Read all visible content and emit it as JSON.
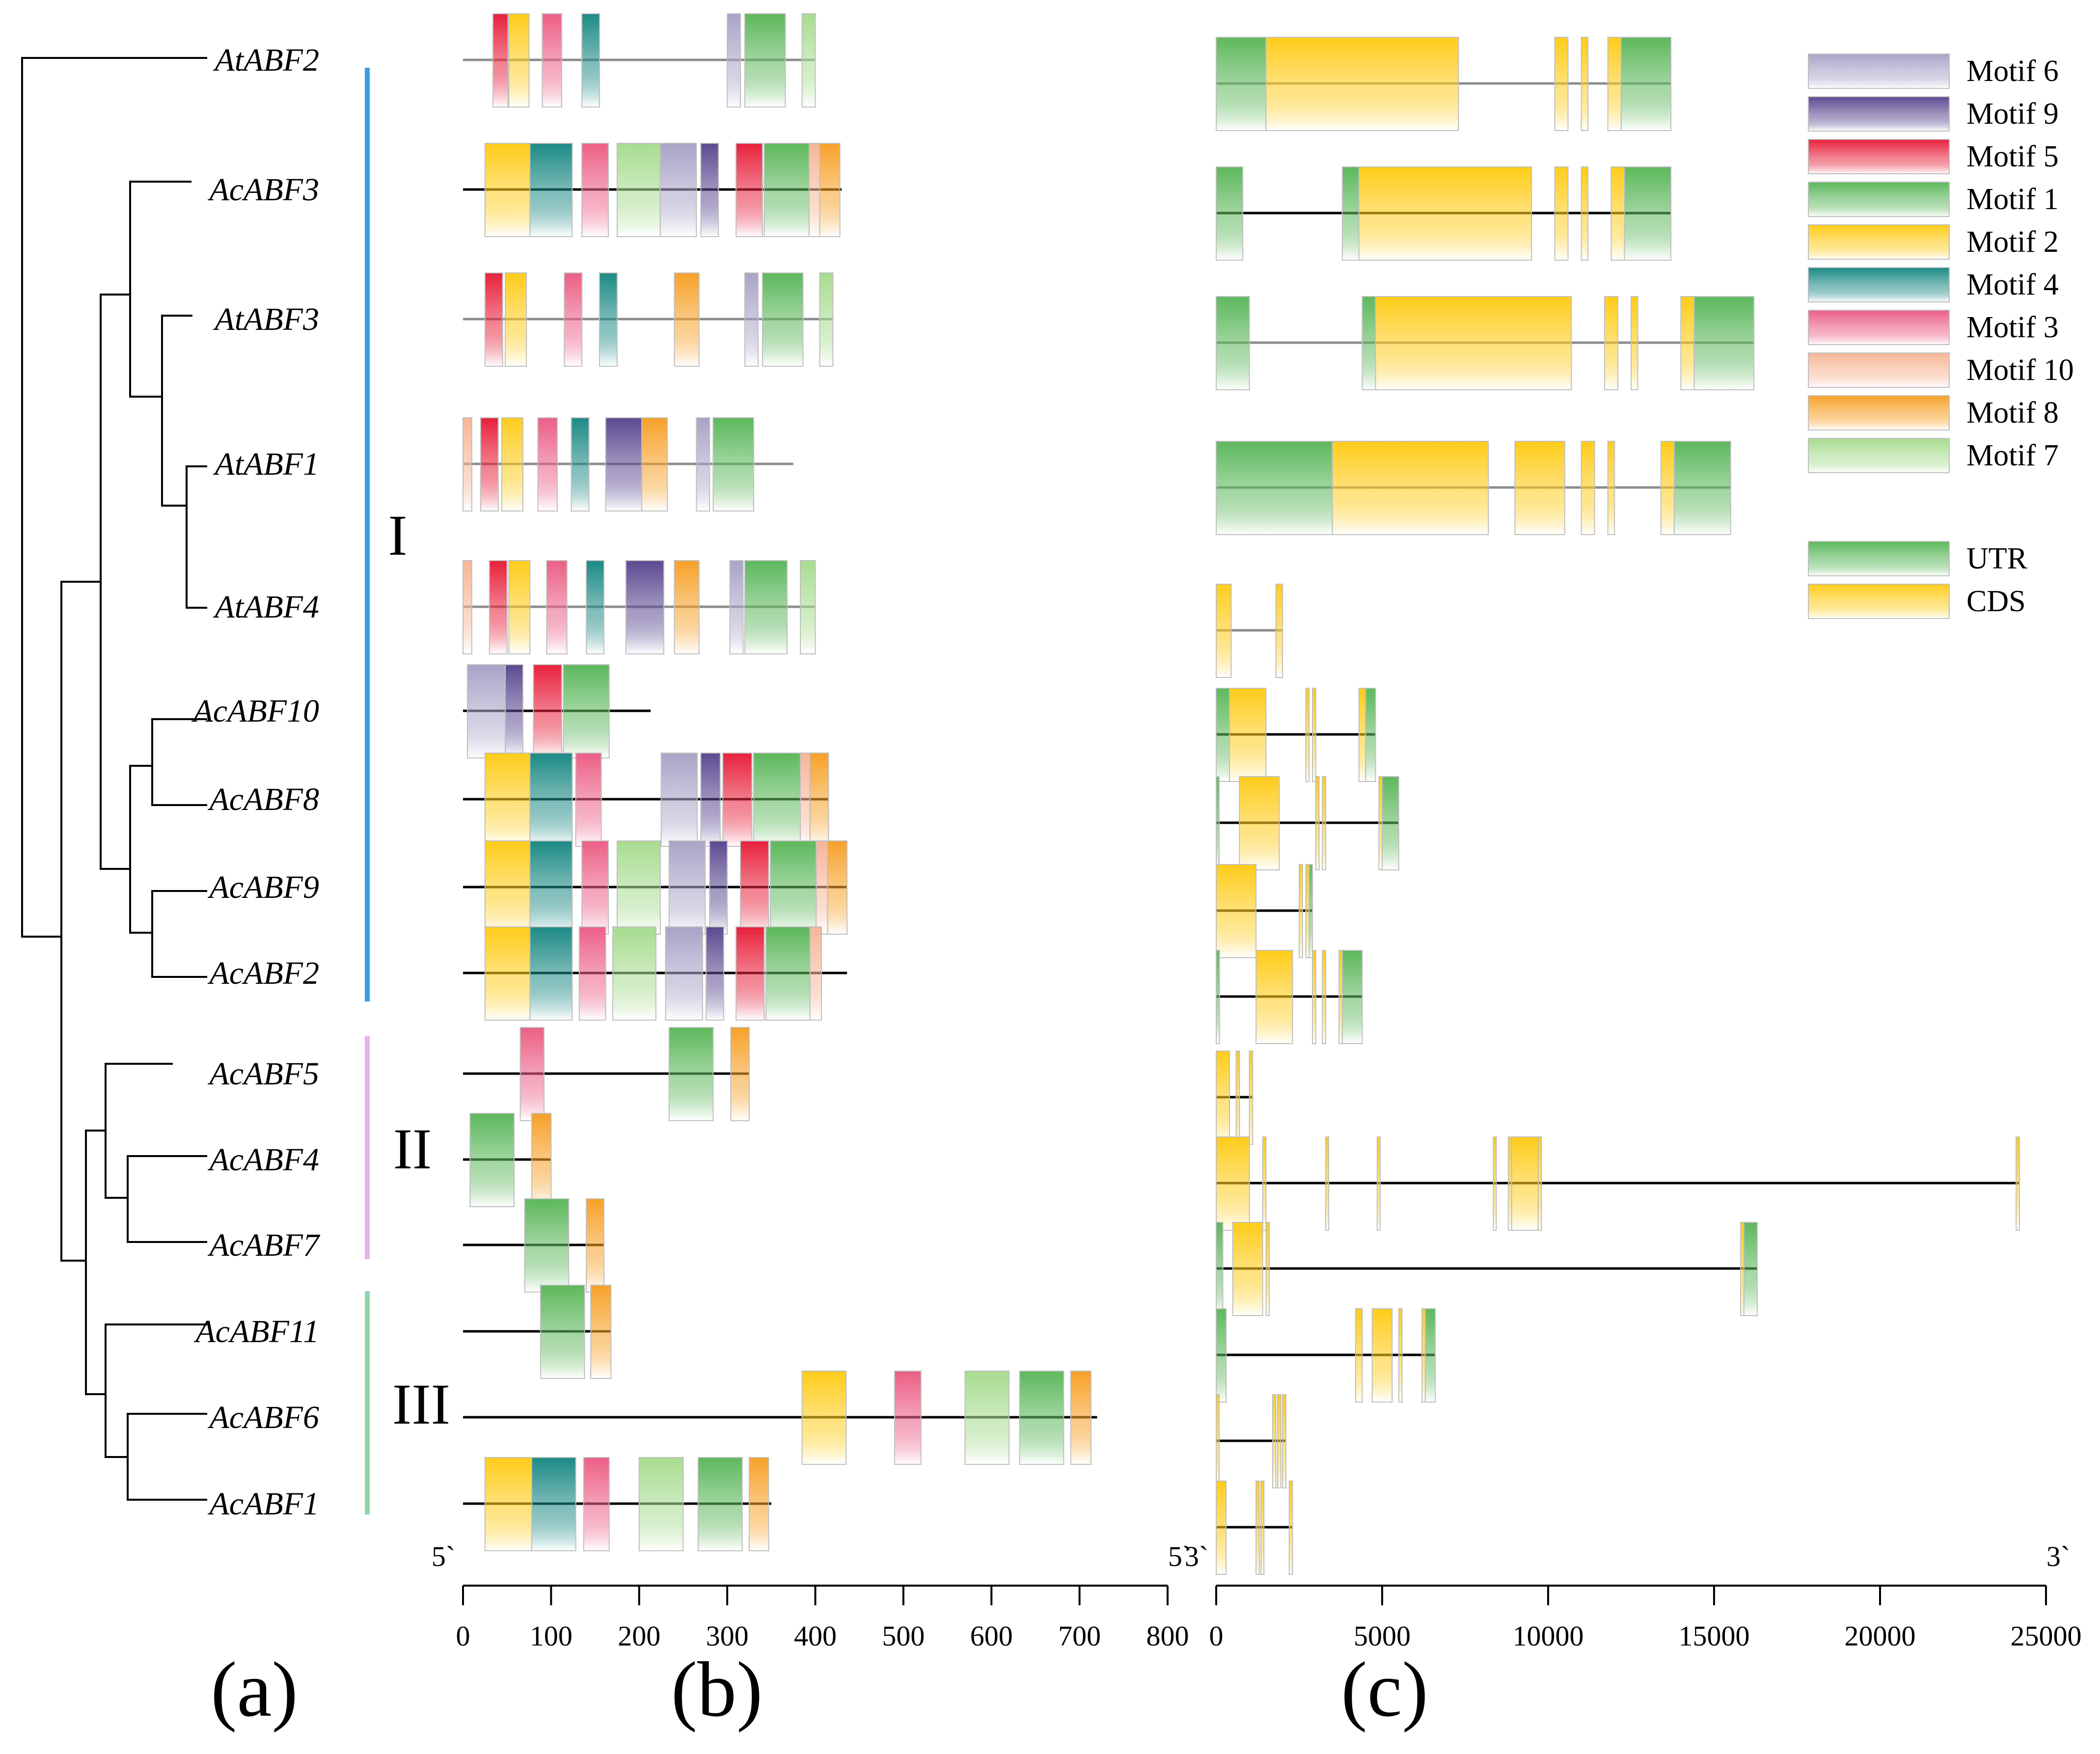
{
  "panel_labels": [
    "(a)",
    "(b)",
    "(c)"
  ],
  "groups": [
    "I",
    "II",
    "III"
  ],
  "group_colors": {
    "I": "#3a9ce6",
    "II": "#e7b3ec",
    "III": "#8fd6ac"
  },
  "genes": [
    "AtABF2",
    "AcABF3",
    "AtABF3",
    "AtABF1",
    "AtABF4",
    "AcABF10",
    "AcABF8",
    "AcABF9",
    "AcABF2",
    "AcABF5",
    "AcABF4",
    "AcABF7",
    "AcABF11",
    "AcABF6",
    "AcABF1"
  ],
  "motif_legend": [
    {
      "label": "Motif 6",
      "color": "#a9a3c7"
    },
    {
      "label": "Motif 9",
      "color": "#5c4a91"
    },
    {
      "label": "Motif 5",
      "color": "#e8213c"
    },
    {
      "label": "Motif 1",
      "color": "#5db85c"
    },
    {
      "label": "Motif 2",
      "color": "#ffcc1a"
    },
    {
      "label": "Motif 4",
      "color": "#1c8a85"
    },
    {
      "label": "Motif 3",
      "color": "#ec5f86"
    },
    {
      "label": "Motif 10",
      "color": "#f6b697"
    },
    {
      "label": "Motif 8",
      "color": "#f7a128"
    },
    {
      "label": "Motif 7",
      "color": "#a7dc8f"
    }
  ],
  "structure_legend": [
    {
      "label": "UTR",
      "color": "#5db85c"
    },
    {
      "label": "CDS",
      "color": "#ffcc1a"
    }
  ],
  "motif_axis": {
    "end_label_left": "5`",
    "end_label_right": "5`",
    "ticks": [
      0,
      100,
      200,
      300,
      400,
      500,
      600,
      700,
      800
    ],
    "max": 800
  },
  "gene_axis": {
    "end_label_left": "3`",
    "end_label_right": "3`",
    "ticks": [
      0,
      5000,
      10000,
      15000,
      20000,
      25000
    ],
    "max": 25000
  },
  "motifs": [
    {
      "gene": "AtABF2",
      "length": 400,
      "motifs": [
        [
          34,
          51,
          5
        ],
        [
          52,
          75,
          2
        ],
        [
          90,
          112,
          3
        ],
        [
          135,
          155,
          4
        ],
        [
          300,
          315,
          6
        ],
        [
          320,
          366,
          1
        ],
        [
          385,
          400,
          7
        ]
      ]
    },
    {
      "gene": "AcABF3",
      "length": 430,
      "motifs": [
        [
          25,
          76,
          2
        ],
        [
          76,
          124,
          4
        ],
        [
          135,
          165,
          3
        ],
        [
          175,
          224,
          7
        ],
        [
          224,
          265,
          6
        ],
        [
          270,
          290,
          9
        ],
        [
          310,
          340,
          5
        ],
        [
          342,
          393,
          1
        ],
        [
          393,
          405,
          10
        ],
        [
          405,
          428,
          8
        ]
      ]
    },
    {
      "gene": "AtABF3",
      "length": 420,
      "motifs": [
        [
          25,
          45,
          5
        ],
        [
          48,
          72,
          2
        ],
        [
          115,
          135,
          3
        ],
        [
          155,
          175,
          4
        ],
        [
          240,
          268,
          8
        ],
        [
          320,
          335,
          6
        ],
        [
          340,
          386,
          1
        ],
        [
          405,
          420,
          7
        ]
      ]
    },
    {
      "gene": "AtABF1",
      "length": 375,
      "motifs": [
        [
          0,
          10,
          10
        ],
        [
          20,
          40,
          5
        ],
        [
          44,
          68,
          2
        ],
        [
          85,
          107,
          3
        ],
        [
          123,
          143,
          4
        ],
        [
          162,
          203,
          9
        ],
        [
          203,
          232,
          8
        ],
        [
          265,
          280,
          6
        ],
        [
          284,
          330,
          1
        ]
      ]
    },
    {
      "gene": "AtABF4",
      "length": 400,
      "motifs": [
        [
          0,
          10,
          10
        ],
        [
          30,
          50,
          5
        ],
        [
          52,
          76,
          2
        ],
        [
          95,
          118,
          3
        ],
        [
          140,
          160,
          4
        ],
        [
          185,
          228,
          9
        ],
        [
          240,
          268,
          8
        ],
        [
          303,
          318,
          6
        ],
        [
          320,
          368,
          1
        ],
        [
          383,
          400,
          7
        ]
      ]
    },
    {
      "gene": "AcABF10",
      "length": 213,
      "motifs": [
        [
          5,
          48,
          6
        ],
        [
          48,
          68,
          9
        ],
        [
          80,
          112,
          5
        ],
        [
          114,
          166,
          1
        ]
      ]
    },
    {
      "gene": "AcABF8",
      "length": 415,
      "motifs": [
        [
          25,
          76,
          2
        ],
        [
          76,
          124,
          4
        ],
        [
          128,
          157,
          3
        ],
        [
          225,
          266,
          6
        ],
        [
          270,
          292,
          9
        ],
        [
          295,
          328,
          5
        ],
        [
          330,
          383,
          1
        ],
        [
          383,
          394,
          10
        ],
        [
          394,
          415,
          8
        ]
      ]
    },
    {
      "gene": "AcABF9",
      "length": 436,
      "motifs": [
        [
          25,
          76,
          2
        ],
        [
          76,
          124,
          4
        ],
        [
          135,
          165,
          3
        ],
        [
          175,
          224,
          7
        ],
        [
          234,
          275,
          6
        ],
        [
          280,
          300,
          9
        ],
        [
          315,
          347,
          5
        ],
        [
          349,
          401,
          1
        ],
        [
          401,
          414,
          10
        ],
        [
          414,
          436,
          8
        ]
      ]
    },
    {
      "gene": "AcABF2",
      "length": 436,
      "motifs": [
        [
          25,
          76,
          2
        ],
        [
          76,
          124,
          4
        ],
        [
          132,
          162,
          3
        ],
        [
          170,
          219,
          7
        ],
        [
          230,
          272,
          6
        ],
        [
          276,
          296,
          9
        ],
        [
          310,
          342,
          5
        ],
        [
          344,
          394,
          1
        ],
        [
          394,
          407,
          10
        ]
      ]
    },
    {
      "gene": "AcABF5",
      "length": 325,
      "motifs": [
        [
          65,
          92,
          3
        ],
        [
          234,
          284,
          1
        ],
        [
          304,
          325,
          8
        ]
      ]
    },
    {
      "gene": "AcABF4",
      "length": 100,
      "motifs": [
        [
          8,
          58,
          1
        ],
        [
          78,
          100,
          8
        ]
      ]
    },
    {
      "gene": "AcABF7",
      "length": 160,
      "motifs": [
        [
          70,
          120,
          1
        ],
        [
          140,
          160,
          8
        ]
      ]
    },
    {
      "gene": "AcABF11",
      "length": 168,
      "motifs": [
        [
          88,
          138,
          1
        ],
        [
          145,
          168,
          8
        ]
      ]
    },
    {
      "gene": "AcABF6",
      "length": 720,
      "motifs": [
        [
          385,
          435,
          2
        ],
        [
          490,
          520,
          3
        ],
        [
          570,
          620,
          7
        ],
        [
          632,
          682,
          1
        ],
        [
          690,
          713,
          8
        ]
      ]
    },
    {
      "gene": "AcABF1",
      "length": 350,
      "motifs": [
        [
          25,
          78,
          2
        ],
        [
          78,
          128,
          4
        ],
        [
          137,
          166,
          3
        ],
        [
          200,
          250,
          7
        ],
        [
          267,
          317,
          1
        ],
        [
          325,
          347,
          8
        ]
      ]
    }
  ],
  "structures": [
    {
      "gene": "AtABF2",
      "end": 13700,
      "exons": [
        [
          0,
          1500,
          "U"
        ],
        [
          1500,
          7300,
          "C"
        ],
        [
          10200,
          10600,
          "C"
        ],
        [
          11000,
          11200,
          "C"
        ],
        [
          11800,
          12200,
          "C"
        ],
        [
          12200,
          13700,
          "U"
        ]
      ]
    },
    {
      "gene": "AcABF3",
      "end": 13700,
      "exons": [
        [
          0,
          800,
          "U"
        ],
        [
          3800,
          4300,
          "U"
        ],
        [
          4300,
          9500,
          "C"
        ],
        [
          10200,
          10600,
          "C"
        ],
        [
          11000,
          11200,
          "C"
        ],
        [
          11900,
          12300,
          "C"
        ],
        [
          12300,
          13700,
          "U"
        ]
      ]
    },
    {
      "gene": "AtABF3",
      "end": 16200,
      "exons": [
        [
          0,
          1000,
          "U"
        ],
        [
          4400,
          4800,
          "U"
        ],
        [
          4800,
          10700,
          "C"
        ],
        [
          11700,
          12100,
          "C"
        ],
        [
          12500,
          12700,
          "C"
        ],
        [
          14000,
          14400,
          "C"
        ],
        [
          14400,
          16200,
          "U"
        ]
      ]
    },
    {
      "gene": "AtABF1",
      "end": 15500,
      "exons": [
        [
          0,
          3500,
          "U"
        ],
        [
          3500,
          8200,
          "C"
        ],
        [
          9000,
          10500,
          "C"
        ],
        [
          11000,
          11400,
          "C"
        ],
        [
          11800,
          12000,
          "C"
        ],
        [
          13400,
          13800,
          "C"
        ],
        [
          13800,
          15500,
          "U"
        ]
      ]
    },
    {
      "gene": "AtABF4",
      "end": 2000,
      "exons": [
        [
          0,
          450,
          "C"
        ],
        [
          1800,
          2000,
          "C"
        ]
      ]
    },
    {
      "gene": "AcABF10",
      "end": 4800,
      "exons": [
        [
          0,
          400,
          "U"
        ],
        [
          400,
          1500,
          "C"
        ],
        [
          2700,
          2800,
          "C"
        ],
        [
          2900,
          3000,
          "C"
        ],
        [
          4300,
          4500,
          "C"
        ],
        [
          4500,
          4800,
          "U"
        ]
      ]
    },
    {
      "gene": "AcABF8",
      "end": 5500,
      "exons": [
        [
          0,
          80,
          "U"
        ],
        [
          700,
          1900,
          "C"
        ],
        [
          3000,
          3100,
          "C"
        ],
        [
          3200,
          3300,
          "C"
        ],
        [
          4900,
          5000,
          "C"
        ],
        [
          5000,
          5500,
          "U"
        ]
      ]
    },
    {
      "gene": "AcABF9",
      "end": 2900,
      "exons": [
        [
          0,
          1200,
          "C"
        ],
        [
          2500,
          2600,
          "C"
        ],
        [
          2700,
          2800,
          "C"
        ],
        [
          2800,
          2900,
          "U"
        ]
      ]
    },
    {
      "gene": "AcABF2",
      "end": 4400,
      "exons": [
        [
          0,
          100,
          "U"
        ],
        [
          1200,
          2300,
          "C"
        ],
        [
          2900,
          3000,
          "C"
        ],
        [
          3200,
          3300,
          "C"
        ],
        [
          3700,
          3800,
          "C"
        ],
        [
          3800,
          4400,
          "U"
        ]
      ]
    },
    {
      "gene": "AcABF5",
      "end": 1100,
      "exons": [
        [
          0,
          400,
          "C"
        ],
        [
          600,
          700,
          "C"
        ],
        [
          1000,
          1100,
          "C"
        ]
      ]
    },
    {
      "gene": "AcABF4",
      "end": 24200,
      "exons": [
        [
          0,
          1000,
          "C"
        ],
        [
          1400,
          1500,
          "C"
        ],
        [
          3300,
          3350,
          "C"
        ],
        [
          4850,
          4900,
          "C"
        ],
        [
          8350,
          8400,
          "C"
        ],
        [
          8800,
          8900,
          "C"
        ],
        [
          8900,
          9700,
          "C"
        ],
        [
          9700,
          9800,
          "C"
        ],
        [
          24100,
          24200,
          "C"
        ]
      ]
    },
    {
      "gene": "AcABF7",
      "end": 16300,
      "exons": [
        [
          0,
          200,
          "U"
        ],
        [
          500,
          1400,
          "C"
        ],
        [
          1500,
          1600,
          "C"
        ],
        [
          15800,
          15900,
          "C"
        ],
        [
          15900,
          16300,
          "U"
        ]
      ]
    },
    {
      "gene": "AcABF11",
      "end": 6600,
      "exons": [
        [
          0,
          300,
          "U"
        ],
        [
          4200,
          4400,
          "C"
        ],
        [
          4700,
          5300,
          "C"
        ],
        [
          5500,
          5600,
          "C"
        ],
        [
          6200,
          6300,
          "C"
        ],
        [
          6300,
          6600,
          "U"
        ]
      ]
    },
    {
      "gene": "AcABF6",
      "end": 2100,
      "exons": [
        [
          0,
          80,
          "C"
        ],
        [
          1700,
          1800,
          "C"
        ],
        [
          1850,
          1950,
          "C"
        ],
        [
          2000,
          2100,
          "C"
        ]
      ]
    },
    {
      "gene": "AcABF1",
      "end": 2300,
      "exons": [
        [
          0,
          300,
          "C"
        ],
        [
          1200,
          1300,
          "C"
        ],
        [
          1350,
          1400,
          "C"
        ],
        [
          2200,
          2300,
          "C"
        ]
      ]
    }
  ]
}
